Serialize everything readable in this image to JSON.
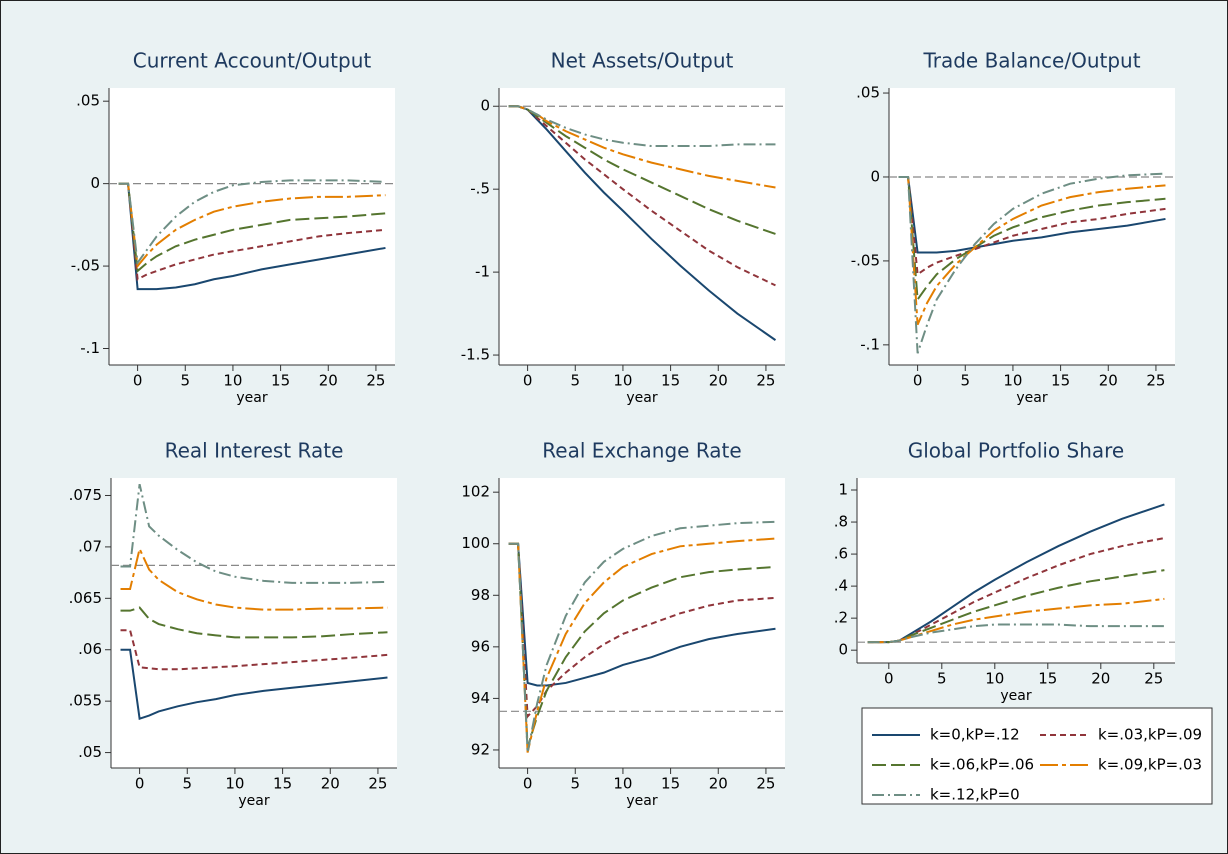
{
  "legend": [
    {
      "name": "k=0,kP=.12",
      "color": "#1a476f"
    },
    {
      "name": "k=.03,kP=.09",
      "color": "#90353b"
    },
    {
      "name": "k=.06,kP=.06",
      "color": "#55752f"
    },
    {
      "name": "k=.09,kP=.03",
      "color": "#e37e00"
    },
    {
      "name": "k=.12,kP=0",
      "color": "#6e8e84"
    }
  ],
  "chart_data": [
    {
      "type": "line",
      "title": "Current Account/Output",
      "x_label": "year",
      "x": [
        -2,
        -1,
        0,
        1,
        2,
        4,
        6,
        8,
        10,
        13,
        16,
        19,
        22,
        26
      ],
      "series": [
        {
          "values": [
            0,
            0,
            -0.064,
            -0.064,
            -0.064,
            -0.063,
            -0.061,
            -0.058,
            -0.056,
            -0.052,
            -0.049,
            -0.046,
            -0.043,
            -0.039
          ]
        },
        {
          "values": [
            0,
            0,
            -0.058,
            -0.055,
            -0.053,
            -0.049,
            -0.046,
            -0.043,
            -0.041,
            -0.038,
            -0.035,
            -0.032,
            -0.03,
            -0.028
          ]
        },
        {
          "values": [
            0,
            0,
            -0.053,
            -0.048,
            -0.044,
            -0.038,
            -0.034,
            -0.031,
            -0.028,
            -0.025,
            -0.022,
            -0.021,
            -0.02,
            -0.018
          ]
        },
        {
          "values": [
            0,
            0,
            -0.05,
            -0.043,
            -0.037,
            -0.028,
            -0.022,
            -0.017,
            -0.014,
            -0.011,
            -0.009,
            -0.008,
            -0.008,
            -0.007
          ]
        },
        {
          "values": [
            0,
            0,
            -0.048,
            -0.04,
            -0.032,
            -0.02,
            -0.011,
            -0.005,
            -0.001,
            0.001,
            0.002,
            0.002,
            0.002,
            0.001
          ]
        }
      ],
      "xlim": [
        -3,
        27
      ],
      "ylim": [
        -0.11,
        0.058
      ],
      "xticks": [
        0,
        5,
        10,
        15,
        20,
        25
      ],
      "yticks": [
        {
          "value": -0.1,
          "label": "-.1"
        },
        {
          "value": -0.05,
          "label": "-.05"
        },
        0,
        {
          "value": 0.05,
          "label": ".05"
        }
      ],
      "hline": 0
    },
    {
      "type": "line",
      "title": "Net Assets/Output",
      "x_label": "year",
      "x": [
        -2,
        -1,
        0,
        1,
        2,
        4,
        6,
        8,
        10,
        13,
        16,
        19,
        22,
        26
      ],
      "series": [
        {
          "values": [
            0,
            0,
            -0.02,
            -0.08,
            -0.14,
            -0.27,
            -0.4,
            -0.52,
            -0.63,
            -0.8,
            -0.96,
            -1.11,
            -1.25,
            -1.41
          ]
        },
        {
          "values": [
            0,
            0,
            -0.02,
            -0.07,
            -0.12,
            -0.22,
            -0.32,
            -0.41,
            -0.5,
            -0.63,
            -0.75,
            -0.87,
            -0.97,
            -1.08
          ]
        },
        {
          "values": [
            0,
            0,
            -0.02,
            -0.06,
            -0.1,
            -0.18,
            -0.25,
            -0.32,
            -0.38,
            -0.46,
            -0.54,
            -0.62,
            -0.69,
            -0.77
          ]
        },
        {
          "values": [
            0,
            0,
            -0.02,
            -0.05,
            -0.09,
            -0.15,
            -0.2,
            -0.25,
            -0.29,
            -0.34,
            -0.38,
            -0.42,
            -0.45,
            -0.49
          ]
        },
        {
          "values": [
            0,
            0,
            -0.02,
            -0.05,
            -0.08,
            -0.13,
            -0.17,
            -0.2,
            -0.22,
            -0.24,
            -0.24,
            -0.24,
            -0.23,
            -0.23
          ]
        }
      ],
      "xlim": [
        -3,
        27
      ],
      "ylim": [
        -1.56,
        0.11
      ],
      "xticks": [
        0,
        5,
        10,
        15,
        20,
        25
      ],
      "yticks": [
        -1.5,
        -1,
        {
          "value": -0.5,
          "label": "-.5"
        },
        0
      ],
      "hline": 0
    },
    {
      "type": "line",
      "title": "Trade Balance/Output",
      "x_label": "year",
      "x": [
        -2,
        -1,
        0,
        1,
        2,
        4,
        6,
        8,
        10,
        13,
        16,
        19,
        22,
        26
      ],
      "series": [
        {
          "values": [
            0,
            0,
            -0.045,
            -0.045,
            -0.045,
            -0.044,
            -0.042,
            -0.04,
            -0.038,
            -0.036,
            -0.033,
            -0.031,
            -0.029,
            -0.025
          ]
        },
        {
          "values": [
            0,
            0,
            -0.058,
            -0.054,
            -0.051,
            -0.047,
            -0.043,
            -0.039,
            -0.035,
            -0.031,
            -0.027,
            -0.025,
            -0.022,
            -0.019
          ]
        },
        {
          "values": [
            0,
            0,
            -0.073,
            -0.065,
            -0.058,
            -0.049,
            -0.042,
            -0.035,
            -0.03,
            -0.024,
            -0.02,
            -0.017,
            -0.015,
            -0.013
          ]
        },
        {
          "values": [
            0,
            0,
            -0.088,
            -0.075,
            -0.065,
            -0.052,
            -0.042,
            -0.032,
            -0.025,
            -0.017,
            -0.012,
            -0.009,
            -0.007,
            -0.005
          ]
        },
        {
          "values": [
            0,
            0,
            -0.105,
            -0.088,
            -0.073,
            -0.055,
            -0.04,
            -0.028,
            -0.019,
            -0.01,
            -0.004,
            -0.001,
            0.001,
            0.002
          ]
        }
      ],
      "xlim": [
        -3,
        27
      ],
      "ylim": [
        -0.112,
        0.053
      ],
      "xticks": [
        0,
        5,
        10,
        15,
        20,
        25
      ],
      "yticks": [
        {
          "value": -0.1,
          "label": "-.1"
        },
        {
          "value": -0.05,
          "label": "-.05"
        },
        0,
        {
          "value": 0.05,
          "label": ".05"
        }
      ],
      "hline": 0
    },
    {
      "type": "line",
      "title": "Real Interest Rate",
      "x_label": "year",
      "x": [
        -2,
        -1,
        0,
        1,
        2,
        4,
        6,
        8,
        10,
        13,
        16,
        19,
        22,
        26
      ],
      "series": [
        {
          "values": [
            0.06,
            0.06,
            0.0533,
            0.0536,
            0.054,
            0.0545,
            0.0549,
            0.0552,
            0.0556,
            0.056,
            0.0563,
            0.0566,
            0.0569,
            0.0573
          ]
        },
        {
          "values": [
            0.0619,
            0.0619,
            0.0583,
            0.0582,
            0.0581,
            0.0581,
            0.0582,
            0.0583,
            0.0584,
            0.0586,
            0.0588,
            0.059,
            0.0592,
            0.0595
          ]
        },
        {
          "values": [
            0.0638,
            0.0638,
            0.0641,
            0.063,
            0.0625,
            0.062,
            0.0616,
            0.0614,
            0.0612,
            0.0612,
            0.0612,
            0.0613,
            0.0615,
            0.0617
          ]
        },
        {
          "values": [
            0.0659,
            0.0659,
            0.0698,
            0.0678,
            0.0668,
            0.0656,
            0.0649,
            0.0644,
            0.0641,
            0.0639,
            0.0639,
            0.064,
            0.064,
            0.0641
          ]
        },
        {
          "values": [
            0.0681,
            0.0681,
            0.0761,
            0.072,
            0.0711,
            0.0697,
            0.0685,
            0.0676,
            0.0671,
            0.0667,
            0.0665,
            0.0665,
            0.0665,
            0.0666
          ]
        }
      ],
      "xlim": [
        -3,
        27
      ],
      "ylim": [
        0.0485,
        0.0767
      ],
      "xticks": [
        0,
        5,
        10,
        15,
        20,
        25
      ],
      "yticks": [
        {
          "value": 0.05,
          "label": ".05"
        },
        {
          "value": 0.055,
          "label": ".055"
        },
        {
          "value": 0.06,
          "label": ".06"
        },
        {
          "value": 0.065,
          "label": ".065"
        },
        {
          "value": 0.07,
          "label": ".07"
        },
        {
          "value": 0.075,
          "label": ".075"
        }
      ],
      "hline": 0.0682
    },
    {
      "type": "line",
      "title": "Real Exchange Rate",
      "x_label": "year",
      "x": [
        -2,
        -1,
        0,
        1,
        2,
        4,
        6,
        8,
        10,
        13,
        16,
        19,
        22,
        26
      ],
      "series": [
        {
          "values": [
            100,
            100,
            94.6,
            94.5,
            94.5,
            94.6,
            94.8,
            95,
            95.3,
            95.6,
            96,
            96.3,
            96.5,
            96.7
          ]
        },
        {
          "values": [
            100,
            100,
            93.3,
            93.7,
            94.3,
            95,
            95.6,
            96.1,
            96.5,
            96.9,
            97.3,
            97.6,
            97.8,
            97.9
          ]
        },
        {
          "values": [
            100,
            100,
            92.1,
            93.3,
            94.3,
            95.6,
            96.6,
            97.3,
            97.8,
            98.3,
            98.7,
            98.9,
            99,
            99.1
          ]
        },
        {
          "values": [
            100,
            100,
            91.9,
            93.5,
            94.8,
            96.5,
            97.7,
            98.5,
            99.1,
            99.6,
            99.9,
            100,
            100.1,
            100.2
          ]
        },
        {
          "values": [
            100,
            100,
            91.9,
            93.8,
            95.3,
            97.2,
            98.5,
            99.3,
            99.8,
            100.3,
            100.6,
            100.7,
            100.8,
            100.85
          ]
        }
      ],
      "xlim": [
        -3,
        27
      ],
      "ylim": [
        91.3,
        102.55
      ],
      "xticks": [
        0,
        5,
        10,
        15,
        20,
        25
      ],
      "yticks": [
        92,
        94,
        96,
        98,
        100,
        102
      ],
      "hline": 93.5
    },
    {
      "type": "line",
      "title": "Global Portfolio Share",
      "x_label": "year",
      "x": [
        -2,
        -1,
        0,
        1,
        2,
        4,
        6,
        8,
        10,
        13,
        16,
        19,
        22,
        26
      ],
      "series": [
        {
          "values": [
            0.05,
            0.05,
            0.05,
            0.06,
            0.1,
            0.18,
            0.27,
            0.36,
            0.44,
            0.55,
            0.65,
            0.74,
            0.82,
            0.91
          ]
        },
        {
          "values": [
            0.05,
            0.05,
            0.05,
            0.06,
            0.09,
            0.16,
            0.23,
            0.3,
            0.36,
            0.45,
            0.53,
            0.6,
            0.65,
            0.7
          ]
        },
        {
          "values": [
            0.05,
            0.05,
            0.05,
            0.06,
            0.09,
            0.14,
            0.19,
            0.24,
            0.28,
            0.34,
            0.39,
            0.43,
            0.46,
            0.5
          ]
        },
        {
          "values": [
            0.05,
            0.05,
            0.05,
            0.06,
            0.08,
            0.12,
            0.16,
            0.19,
            0.21,
            0.24,
            0.26,
            0.28,
            0.29,
            0.32
          ]
        },
        {
          "values": [
            0.05,
            0.05,
            0.05,
            0.06,
            0.08,
            0.11,
            0.13,
            0.15,
            0.16,
            0.16,
            0.16,
            0.15,
            0.15,
            0.15
          ]
        }
      ],
      "xlim": [
        -3,
        27
      ],
      "ylim": [
        -0.08,
        1.075
      ],
      "xticks": [
        0,
        5,
        10,
        15,
        20,
        25
      ],
      "yticks": [
        0,
        {
          "value": 0.2,
          "label": ".2"
        },
        {
          "value": 0.4,
          "label": ".4"
        },
        {
          "value": 0.6,
          "label": ".6"
        },
        {
          "value": 0.8,
          "label": ".8"
        },
        1
      ],
      "hline": 0.05
    }
  ]
}
